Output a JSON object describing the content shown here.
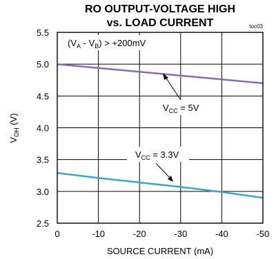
{
  "chart_data": {
    "type": "line",
    "title_line1": "RO OUTPUT-VOLTAGE HIGH",
    "title_line2": "vs. LOAD CURRENT",
    "tag": "toc03",
    "xlabel": "SOURCE CURRENT (mA)",
    "ylabel": {
      "main": "V",
      "sub": "OH",
      "unit": " (V)"
    },
    "xlim": [
      0,
      -50
    ],
    "ylim": [
      2.5,
      5.5
    ],
    "x_ticks": [
      0,
      -10,
      -20,
      -30,
      -40,
      -50
    ],
    "x_tick_labels": [
      "0",
      "-10",
      "-20",
      "-30",
      "-40",
      "-50"
    ],
    "y_ticks": [
      2.5,
      3.0,
      3.5,
      4.0,
      4.5,
      5.0,
      5.5
    ],
    "y_tick_labels": [
      "2.5",
      "3.0",
      "3.5",
      "4.0",
      "4.5",
      "5.0",
      "5.5"
    ],
    "grid": true,
    "condition": {
      "pre": "(V",
      "sub1": "A",
      "mid": " - V",
      "sub2": "B",
      "post": ") > +200mV"
    },
    "series": [
      {
        "label": {
          "main": "V",
          "sub": "CC",
          "post": " = 5V"
        },
        "color": "#8a6bb0",
        "x": [
          0,
          -10,
          -20,
          -30,
          -40,
          -50
        ],
        "y": [
          5.0,
          4.94,
          4.88,
          4.82,
          4.76,
          4.7
        ]
      },
      {
        "label": {
          "main": "V",
          "sub": "CC",
          "post": " = 3.3V"
        },
        "color": "#3aa6c4",
        "x": [
          0,
          -10,
          -20,
          -30,
          -40,
          -50
        ],
        "y": [
          3.29,
          3.21,
          3.14,
          3.07,
          2.99,
          2.9
        ]
      }
    ]
  }
}
